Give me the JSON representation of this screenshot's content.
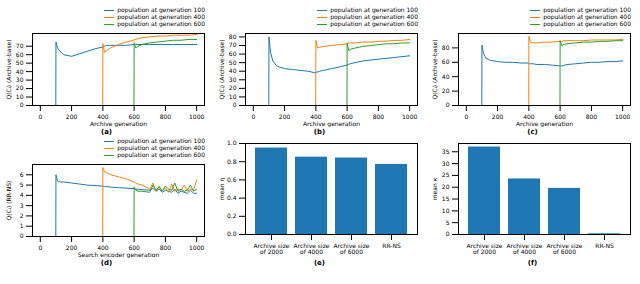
{
  "chart_data": [
    {
      "type": "line",
      "title": "(a)",
      "xlabel": "Archive generation",
      "ylabel": "Q(Cᵢ) (Archive-base)",
      "x": [
        0,
        99,
        100,
        110,
        125,
        150,
        200,
        250,
        300,
        350,
        399,
        400,
        410,
        425,
        450,
        500,
        550,
        599,
        600,
        610,
        625,
        650,
        700,
        750,
        800,
        850,
        900,
        950,
        1000
      ],
      "series": [
        {
          "name": "population at generation 100",
          "color": "#1f77b4",
          "values": [
            0,
            0,
            75,
            68,
            64,
            60,
            58,
            61,
            64,
            67,
            69,
            70,
            70,
            71,
            71,
            71,
            71,
            72,
            72,
            72,
            72,
            72,
            72,
            72,
            72,
            72,
            72,
            72,
            72
          ]
        },
        {
          "name": "population at generation 400",
          "color": "#ff7f0e",
          "values": [
            0,
            0,
            0,
            0,
            0,
            0,
            0,
            0,
            0,
            0,
            0,
            73,
            63,
            65,
            68,
            72,
            75,
            77,
            78,
            78,
            79,
            80,
            81,
            82,
            82,
            83,
            83,
            83,
            84
          ]
        },
        {
          "name": "population at generation 600",
          "color": "#2ca02c",
          "values": [
            0,
            0,
            0,
            0,
            0,
            0,
            0,
            0,
            0,
            0,
            0,
            0,
            0,
            0,
            0,
            0,
            0,
            0,
            74,
            68,
            70,
            72,
            74,
            75,
            76,
            77,
            77,
            78,
            78
          ]
        }
      ],
      "xlim": [
        -50,
        1050
      ],
      "ylim": [
        0,
        85
      ],
      "xticks": [
        0,
        200,
        400,
        600,
        800,
        1000
      ],
      "yticks": [
        0,
        10,
        20,
        30,
        40,
        50,
        60,
        70
      ],
      "grid": false,
      "legend": "top right"
    },
    {
      "type": "line",
      "title": "(b)",
      "xlabel": "Archive generation",
      "ylabel": "Q(Cᵢ) (Archive-base)",
      "x": [
        0,
        99,
        100,
        110,
        125,
        150,
        200,
        250,
        300,
        350,
        399,
        400,
        410,
        425,
        450,
        500,
        550,
        599,
        600,
        610,
        625,
        650,
        700,
        750,
        800,
        850,
        900,
        950,
        1000
      ],
      "series": [
        {
          "name": "population at generation 100",
          "color": "#1f77b4",
          "values": [
            0,
            0,
            80,
            62,
            52,
            46,
            43,
            42,
            41,
            40,
            38,
            39,
            39,
            40,
            41,
            43,
            45,
            47,
            48,
            48,
            49,
            50,
            52,
            53,
            54,
            55,
            56,
            57,
            58
          ]
        },
        {
          "name": "population at generation 400",
          "color": "#ff7f0e",
          "values": [
            0,
            0,
            0,
            0,
            0,
            0,
            0,
            0,
            0,
            0,
            0,
            76,
            67,
            68,
            69,
            70,
            71,
            72,
            72,
            73,
            73,
            73,
            74,
            74,
            75,
            75,
            76,
            76,
            77
          ]
        },
        {
          "name": "population at generation 600",
          "color": "#2ca02c",
          "values": [
            0,
            0,
            0,
            0,
            0,
            0,
            0,
            0,
            0,
            0,
            0,
            0,
            0,
            0,
            0,
            0,
            0,
            0,
            73,
            64,
            66,
            67,
            69,
            70,
            71,
            72,
            72,
            73,
            73
          ]
        }
      ],
      "xlim": [
        -50,
        1050
      ],
      "ylim": [
        0,
        84
      ],
      "xticks": [
        0,
        200,
        400,
        600,
        800,
        1000
      ],
      "yticks": [
        0,
        10,
        20,
        30,
        40,
        50,
        60,
        70,
        80
      ],
      "grid": false,
      "legend": "top right"
    },
    {
      "type": "line",
      "title": "(c)",
      "xlabel": "Archive generation",
      "ylabel": "Q(Cᵢ) (Archive-base)",
      "x": [
        0,
        99,
        100,
        110,
        125,
        150,
        200,
        250,
        300,
        350,
        399,
        400,
        410,
        425,
        450,
        500,
        550,
        599,
        600,
        610,
        625,
        650,
        700,
        750,
        800,
        850,
        900,
        950,
        1000
      ],
      "series": [
        {
          "name": "population at generation 100",
          "color": "#1f77b4",
          "values": [
            0,
            0,
            84,
            72,
            66,
            63,
            61,
            60,
            60,
            59,
            59,
            58,
            58,
            58,
            57,
            57,
            56,
            55,
            55,
            55,
            56,
            57,
            58,
            59,
            60,
            60,
            61,
            61,
            62
          ]
        },
        {
          "name": "population at generation 400",
          "color": "#ff7f0e",
          "values": [
            0,
            0,
            0,
            0,
            0,
            0,
            0,
            0,
            0,
            0,
            0,
            96,
            88,
            87,
            87,
            88,
            88,
            89,
            89,
            89,
            90,
            90,
            90,
            90,
            91,
            91,
            91,
            91,
            92
          ]
        },
        {
          "name": "population at generation 600",
          "color": "#2ca02c",
          "values": [
            0,
            0,
            0,
            0,
            0,
            0,
            0,
            0,
            0,
            0,
            0,
            0,
            0,
            0,
            0,
            0,
            0,
            0,
            90,
            83,
            85,
            86,
            87,
            88,
            88,
            89,
            89,
            90,
            90
          ]
        }
      ],
      "xlim": [
        -50,
        1050
      ],
      "ylim": [
        0,
        100
      ],
      "xticks": [
        0,
        200,
        400,
        600,
        800,
        1000
      ],
      "yticks": [
        0,
        20,
        40,
        60,
        80
      ],
      "grid": false,
      "legend": "top right"
    },
    {
      "type": "line",
      "title": "(d)",
      "xlabel": "Search encoder generation",
      "ylabel": "Q(Cᵢ) (RR-NS)",
      "x": [
        0,
        99,
        100,
        110,
        125,
        150,
        200,
        250,
        300,
        350,
        399,
        400,
        410,
        425,
        450,
        500,
        550,
        599,
        600,
        610,
        625,
        650,
        700,
        720,
        740,
        760,
        780,
        800,
        820,
        840,
        860,
        880,
        900,
        920,
        940,
        960,
        980,
        1000
      ],
      "series": [
        {
          "name": "population at generation 100",
          "color": "#1f77b4",
          "values": [
            0,
            0,
            6.0,
            5.4,
            5.3,
            5.3,
            5.2,
            5.1,
            5.0,
            4.95,
            4.9,
            4.9,
            4.85,
            4.85,
            4.8,
            4.75,
            4.7,
            4.65,
            4.65,
            4.6,
            4.6,
            4.55,
            4.5,
            4.7,
            4.4,
            4.6,
            4.3,
            4.5,
            4.4,
            4.3,
            4.6,
            4.2,
            4.4,
            4.3,
            4.2,
            4.5,
            4.2,
            4.2
          ]
        },
        {
          "name": "population at generation 400",
          "color": "#ff7f0e",
          "values": [
            0,
            0,
            0,
            0,
            0,
            0,
            0,
            0,
            0,
            0,
            0,
            6.7,
            6.3,
            6.2,
            6.0,
            5.8,
            5.6,
            5.3,
            5.3,
            5.2,
            5.1,
            5.0,
            4.6,
            5.2,
            4.4,
            4.9,
            4.5,
            4.7,
            4.3,
            5.1,
            4.4,
            4.6,
            4.5,
            5.0,
            4.4,
            4.6,
            4.5,
            5.5
          ]
        },
        {
          "name": "population at generation 600",
          "color": "#2ca02c",
          "values": [
            0,
            0,
            0,
            0,
            0,
            0,
            0,
            0,
            0,
            0,
            0,
            0,
            0,
            0,
            0,
            0,
            0,
            0,
            4.8,
            4.5,
            4.4,
            4.4,
            4.3,
            5.0,
            4.5,
            4.8,
            4.4,
            4.9,
            4.6,
            4.5,
            5.2,
            4.4,
            4.6,
            4.4,
            4.5,
            5.0,
            4.4,
            4.6
          ]
        }
      ],
      "xlim": [
        -50,
        1050
      ],
      "ylim": [
        0,
        7
      ],
      "xticks": [
        0,
        200,
        400,
        600,
        800,
        1000
      ],
      "yticks": [
        0,
        1,
        2,
        3,
        4,
        5,
        6
      ],
      "grid": false,
      "legend": "top right"
    },
    {
      "type": "bar",
      "title": "(e)",
      "ylabel": "mean η",
      "categories": [
        "Archive size of 2000",
        "Archive size of 4000",
        "Archive size of 6000",
        "RR-NS"
      ],
      "values": [
        0.95,
        0.85,
        0.84,
        0.77
      ],
      "color": "#1f77b4",
      "ylim": [
        0,
        1.0
      ],
      "yticks": [
        {
          "value": 0,
          "label": "0.0"
        },
        {
          "value": 0.2,
          "label": "0.2"
        },
        {
          "value": 0.4,
          "label": "0.4"
        },
        {
          "value": 0.6,
          "label": "0.6"
        },
        {
          "value": 0.8,
          "label": "0.8"
        },
        {
          "value": 1.0,
          "label": "1.0"
        }
      ],
      "grid": false
    },
    {
      "type": "bar",
      "title": "(f)",
      "ylabel": "mean κ",
      "categories": [
        "Archive size of 2000",
        "Archive size of 4000",
        "Archive size of 6000",
        "RR-NS"
      ],
      "values": [
        37,
        23.5,
        19.5,
        0.3
      ],
      "color": "#1f77b4",
      "ylim": [
        0,
        38.5
      ],
      "yticks": [
        0,
        5,
        10,
        15,
        20,
        25,
        30,
        35
      ],
      "grid": false
    }
  ]
}
